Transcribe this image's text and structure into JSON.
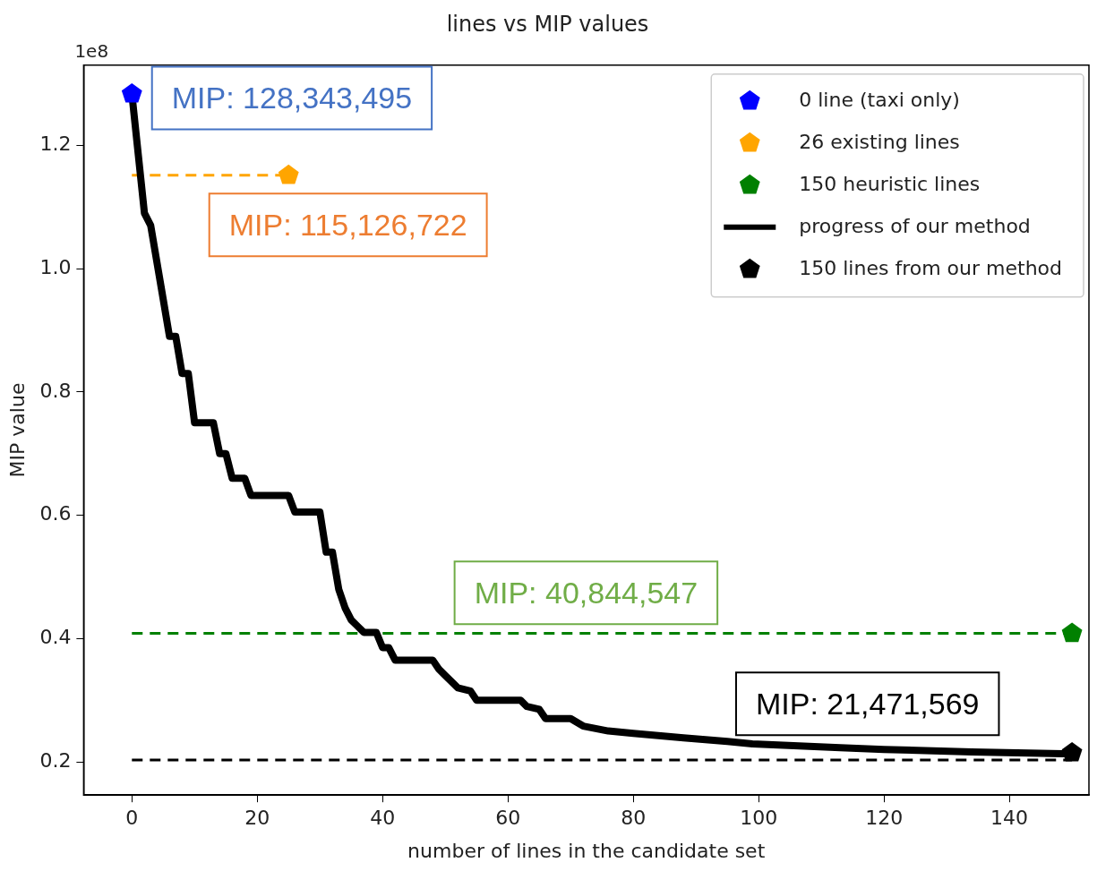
{
  "chart_data": {
    "type": "line",
    "title": "lines vs MIP values",
    "xlabel": "number of lines in the candidate set",
    "ylabel": "MIP value",
    "xlim": [
      -7.7,
      152.7
    ],
    "xticks": [
      0,
      20,
      40,
      60,
      80,
      100,
      120,
      140
    ],
    "ylim": [
      0.146,
      1.33
    ],
    "yticks": [
      {
        "value": 0.2,
        "label": "0.2"
      },
      {
        "value": 0.4,
        "label": "0.4"
      },
      {
        "value": 0.6,
        "label": "0.6"
      },
      {
        "value": 0.8,
        "label": "0.8"
      },
      {
        "value": 1.0,
        "label": "1.0"
      },
      {
        "value": 1.2,
        "label": "1.2"
      }
    ],
    "grid": false,
    "legend": "top right",
    "series": [
      {
        "name": "0 line (taxi only)",
        "type": "scatter",
        "color": "#0000ff",
        "x": [
          0
        ],
        "values": [
          1.2834
        ]
      },
      {
        "name": "26 existing lines",
        "type": "scatter",
        "color": "#ffa500",
        "x": [
          25
        ],
        "values": [
          1.1513
        ]
      },
      {
        "name": "150 heuristic lines",
        "type": "scatter",
        "color": "#008000",
        "x": [
          150
        ],
        "values": [
          0.4084
        ]
      },
      {
        "name": "progress of our method",
        "type": "line",
        "color": "#000000",
        "line_style": "solid",
        "x": [
          0,
          2,
          3,
          5,
          6,
          7,
          8,
          9,
          10,
          12,
          13,
          14,
          15,
          16,
          18,
          19,
          25,
          26,
          30,
          31,
          32,
          33,
          34,
          35,
          36,
          37,
          39,
          40,
          41,
          42,
          48,
          49,
          50,
          52,
          54,
          55,
          62,
          63,
          65,
          66,
          70,
          72,
          76,
          80,
          88,
          95,
          99,
          113,
          120,
          134,
          148.5,
          150
        ],
        "values": [
          1.2834,
          1.09,
          1.07,
          0.95,
          0.89,
          0.89,
          0.83,
          0.83,
          0.75,
          0.75,
          0.75,
          0.7,
          0.7,
          0.66,
          0.66,
          0.632,
          0.632,
          0.605,
          0.605,
          0.54,
          0.54,
          0.48,
          0.45,
          0.43,
          0.42,
          0.41,
          0.41,
          0.385,
          0.385,
          0.365,
          0.365,
          0.35,
          0.34,
          0.32,
          0.315,
          0.3,
          0.3,
          0.29,
          0.285,
          0.27,
          0.27,
          0.258,
          0.25,
          0.246,
          0.239,
          0.233,
          0.229,
          0.223,
          0.22,
          0.216,
          0.213,
          0.2147
        ]
      },
      {
        "name": "150 lines from our method",
        "type": "scatter",
        "color": "#000000",
        "x": [
          150
        ],
        "values": [
          0.2147
        ]
      },
      {
        "type": "line",
        "color": "#ffa500",
        "line_style": "dashed",
        "x": [
          0,
          25
        ],
        "values": [
          1.1513,
          1.1513
        ]
      },
      {
        "type": "line",
        "color": "#008000",
        "line_style": "dashed",
        "x": [
          0,
          150
        ],
        "values": [
          0.4084,
          0.4084
        ]
      },
      {
        "type": "line",
        "color": "#000000",
        "line_style": "dashed",
        "x": [
          0,
          150
        ],
        "values": [
          0.203,
          0.203
        ]
      }
    ],
    "annotations": [
      "1e8",
      "MIP: 128,343,495",
      "MIP: 115,126,722",
      "MIP: 40,844,547",
      "MIP: 21,471,569"
    ]
  }
}
